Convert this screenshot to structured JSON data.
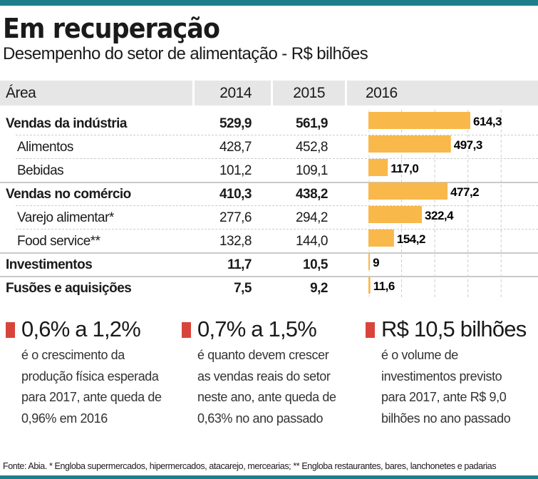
{
  "header": {
    "title": "Em recuperação",
    "subtitle": "Desempenho do setor de alimentação - R$ bilhões"
  },
  "colors": {
    "accent": "#1d7f8c",
    "bar": "#f9b84a",
    "marker": "#d9443a"
  },
  "table": {
    "columns": [
      "Área",
      "2014",
      "2015",
      "2016"
    ],
    "rows": [
      {
        "label": "Vendas da indústria",
        "v2014": "529,9",
        "v2015": "561,9",
        "v2016": "614,3",
        "level": "main"
      },
      {
        "label": "Alimentos",
        "v2014": "428,7",
        "v2015": "452,8",
        "v2016": "497,3",
        "level": "sub"
      },
      {
        "label": "Bebidas",
        "v2014": "101,2",
        "v2015": "109,1",
        "v2016": "117,0",
        "level": "sub"
      },
      {
        "label": "Vendas no comércio",
        "v2014": "410,3",
        "v2015": "438,2",
        "v2016": "477,2",
        "level": "main"
      },
      {
        "label": "Varejo alimentar*",
        "v2014": "277,6",
        "v2015": "294,2",
        "v2016": "322,4",
        "level": "sub"
      },
      {
        "label": "Food service**",
        "v2014": "132,8",
        "v2015": "144,0",
        "v2016": "154,2",
        "level": "sub"
      },
      {
        "label": "Investimentos",
        "v2014": "11,7",
        "v2015": "10,5",
        "v2016": "9",
        "level": "main"
      },
      {
        "label": "Fusões e aquisições",
        "v2014": "7,5",
        "v2015": "9,2",
        "v2016": "11,6",
        "level": "main"
      }
    ]
  },
  "chart_data": {
    "type": "bar",
    "orientation": "horizontal",
    "categories": [
      "Vendas da indústria",
      "Alimentos",
      "Bebidas",
      "Vendas no comércio",
      "Varejo alimentar*",
      "Food service**",
      "Investimentos",
      "Fusões e aquisições"
    ],
    "values": [
      614.3,
      497.3,
      117.0,
      477.2,
      322.4,
      154.2,
      9,
      11.6
    ],
    "labels": [
      "614,3",
      "497,3",
      "117,0",
      "477,2",
      "322,4",
      "154,2",
      "9",
      "11,6"
    ],
    "title": "2016",
    "xlim": [
      0,
      1000
    ],
    "grid": true
  },
  "stats": [
    {
      "headline": "0,6% a 1,2%",
      "body": "é o crescimento da produção física esperada para 2017, ante queda de 0,96% em 2016"
    },
    {
      "headline": "0,7% a 1,5%",
      "body": "é quanto devem crescer as vendas reais do setor neste ano, ante queda de 0,63% no ano passado"
    },
    {
      "headline": "R$ 10,5 bilhões",
      "body": "é o volume de investimentos previsto para 2017, ante R$ 9,0 bilhões no ano passado"
    }
  ],
  "footnote": "Fonte: Abia. * Engloba supermercados, hipermercados, atacarejo, mercearias; ** Engloba restaurantes, bares, lanchonetes e padarias"
}
